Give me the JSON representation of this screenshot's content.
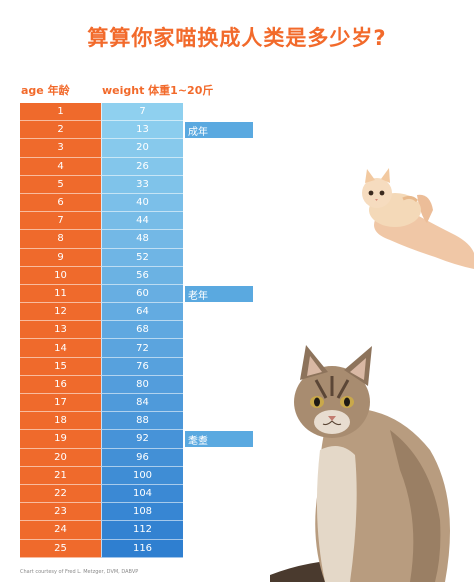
{
  "title": "算算你家喵换成人类是多少岁?",
  "header": {
    "age_label": "age  年龄",
    "weight_label": "weight  体重1~20斤"
  },
  "rows": [
    {
      "age": "1",
      "weight": "7"
    },
    {
      "age": "2",
      "weight": "13"
    },
    {
      "age": "3",
      "weight": "20"
    },
    {
      "age": "4",
      "weight": "26"
    },
    {
      "age": "5",
      "weight": "33"
    },
    {
      "age": "6",
      "weight": "40"
    },
    {
      "age": "7",
      "weight": "44"
    },
    {
      "age": "8",
      "weight": "48"
    },
    {
      "age": "9",
      "weight": "52"
    },
    {
      "age": "10",
      "weight": "56"
    },
    {
      "age": "11",
      "weight": "60"
    },
    {
      "age": "12",
      "weight": "64"
    },
    {
      "age": "13",
      "weight": "68"
    },
    {
      "age": "14",
      "weight": "72"
    },
    {
      "age": "15",
      "weight": "76"
    },
    {
      "age": "16",
      "weight": "80"
    },
    {
      "age": "17",
      "weight": "84"
    },
    {
      "age": "18",
      "weight": "88"
    },
    {
      "age": "19",
      "weight": "92"
    },
    {
      "age": "20",
      "weight": "96"
    },
    {
      "age": "21",
      "weight": "100"
    },
    {
      "age": "22",
      "weight": "104"
    },
    {
      "age": "23",
      "weight": "108"
    },
    {
      "age": "24",
      "weight": "112"
    },
    {
      "age": "25",
      "weight": "116"
    }
  ],
  "tags": {
    "adult": "成年",
    "senior": "老年",
    "elderly": "耄耋"
  },
  "credit": "Chart courtesy of Fred L. Metzger, DVM, DABVP",
  "colors": {
    "title": "#f26a2b",
    "age_column": "#ef6a2c",
    "weight_light": "#8fd0ef",
    "weight_dark": "#2f7fd0",
    "tag": "#5aa9e0"
  }
}
